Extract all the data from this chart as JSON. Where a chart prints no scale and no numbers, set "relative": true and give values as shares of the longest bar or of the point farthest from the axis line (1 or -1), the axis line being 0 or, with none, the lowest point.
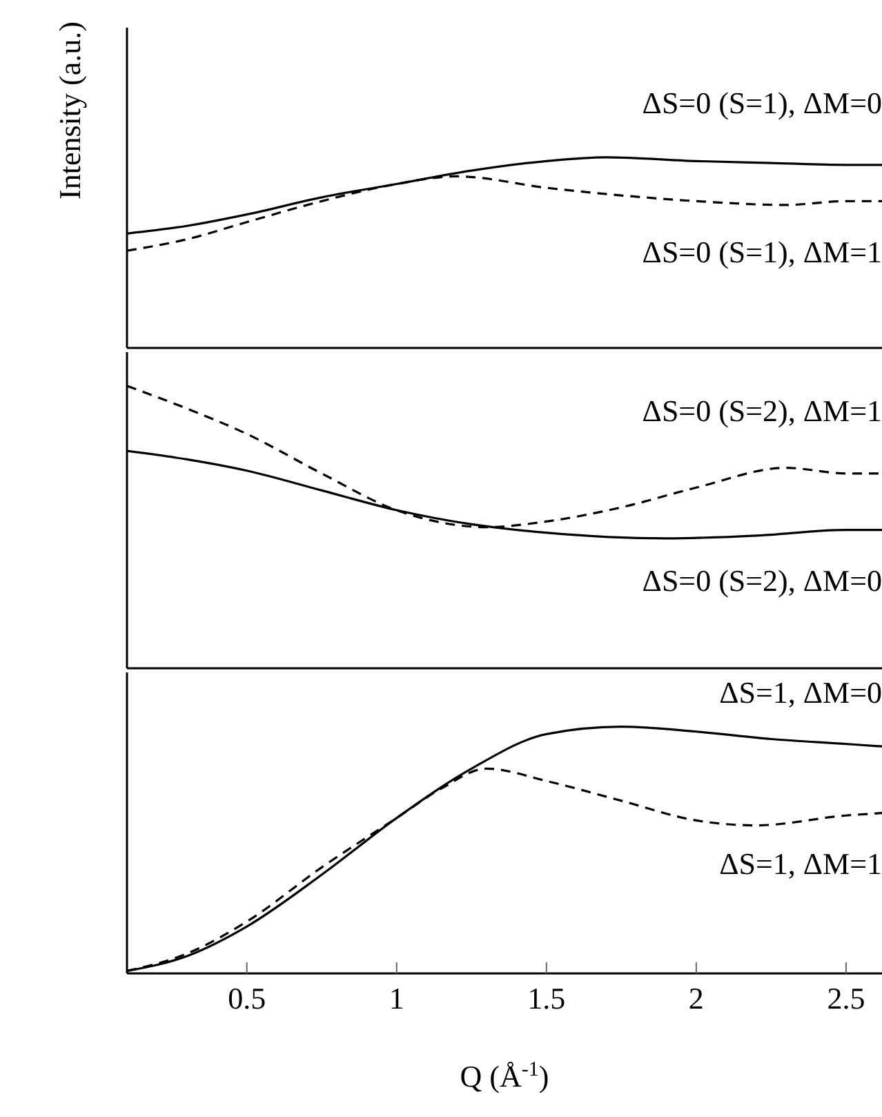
{
  "chart_data": [
    {
      "type": "line",
      "relative": true,
      "ylabel": "Intensity (a.u.)",
      "xlim": [
        0.1,
        2.62
      ],
      "tick_labels": false,
      "legend": false,
      "marker": "none",
      "series": [
        {
          "name": "ΔS=0 (S=1), ΔM=0",
          "color": "#000000",
          "line_style": "solid",
          "x": [
            0.1,
            0.3,
            0.5,
            0.75,
            1.0,
            1.25,
            1.5,
            1.7,
            2.0,
            2.25,
            2.5,
            2.62
          ],
          "values": [
            0.6,
            0.64,
            0.7,
            0.79,
            0.86,
            0.93,
            0.98,
            1.0,
            0.98,
            0.97,
            0.96,
            0.96
          ]
        },
        {
          "name": "ΔS=0 (S=1), ΔM=1",
          "color": "#000000",
          "line_style": "dashed",
          "x": [
            0.1,
            0.3,
            0.5,
            0.75,
            1.0,
            1.2,
            1.5,
            1.75,
            2.0,
            2.3,
            2.5,
            2.62
          ],
          "values": [
            0.51,
            0.57,
            0.66,
            0.77,
            0.86,
            0.9,
            0.84,
            0.8,
            0.77,
            0.75,
            0.77,
            0.77
          ]
        }
      ]
    },
    {
      "type": "line",
      "relative": true,
      "xlim": [
        0.1,
        2.62
      ],
      "tick_labels": false,
      "legend": false,
      "marker": "none",
      "series": [
        {
          "name": "ΔS=0 (S=2), ΔM=1",
          "color": "#000000",
          "line_style": "dashed",
          "x": [
            0.1,
            0.3,
            0.5,
            0.75,
            1.0,
            1.3,
            1.5,
            1.75,
            2.0,
            2.3,
            2.5,
            2.62
          ],
          "values": [
            1.0,
            0.92,
            0.83,
            0.69,
            0.56,
            0.5,
            0.52,
            0.57,
            0.64,
            0.71,
            0.69,
            0.69
          ]
        },
        {
          "name": "ΔS=0 (S=2), ΔM=0",
          "color": "#000000",
          "line_style": "solid",
          "x": [
            0.1,
            0.3,
            0.5,
            0.75,
            1.0,
            1.25,
            1.5,
            1.9,
            2.2,
            2.5,
            2.62
          ],
          "values": [
            0.77,
            0.74,
            0.7,
            0.63,
            0.56,
            0.51,
            0.48,
            0.46,
            0.47,
            0.49,
            0.49
          ]
        }
      ]
    },
    {
      "type": "line",
      "relative": true,
      "xlabel": "Q (Å$^{-1}$)",
      "xlim": [
        0.1,
        2.62
      ],
      "xticks": [
        0.5,
        1.0,
        1.5,
        2.0,
        2.5
      ],
      "tick_labels": "x",
      "legend": false,
      "marker": "none",
      "series": [
        {
          "name": "ΔS=1, ΔM=0",
          "color": "#000000",
          "line_style": "solid",
          "x": [
            0.1,
            0.3,
            0.5,
            0.75,
            1.0,
            1.25,
            1.5,
            1.75,
            2.0,
            2.25,
            2.5,
            2.62
          ],
          "values": [
            0.01,
            0.07,
            0.19,
            0.4,
            0.63,
            0.83,
            0.97,
            1.0,
            0.98,
            0.95,
            0.93,
            0.92
          ]
        },
        {
          "name": "ΔS=1, ΔM=1",
          "color": "#000000",
          "line_style": "dashed",
          "x": [
            0.1,
            0.3,
            0.5,
            0.75,
            1.0,
            1.15,
            1.3,
            1.5,
            1.75,
            2.0,
            2.2,
            2.5,
            2.62
          ],
          "values": [
            0.01,
            0.08,
            0.21,
            0.43,
            0.63,
            0.75,
            0.83,
            0.78,
            0.7,
            0.62,
            0.6,
            0.64,
            0.65
          ]
        }
      ]
    }
  ]
}
